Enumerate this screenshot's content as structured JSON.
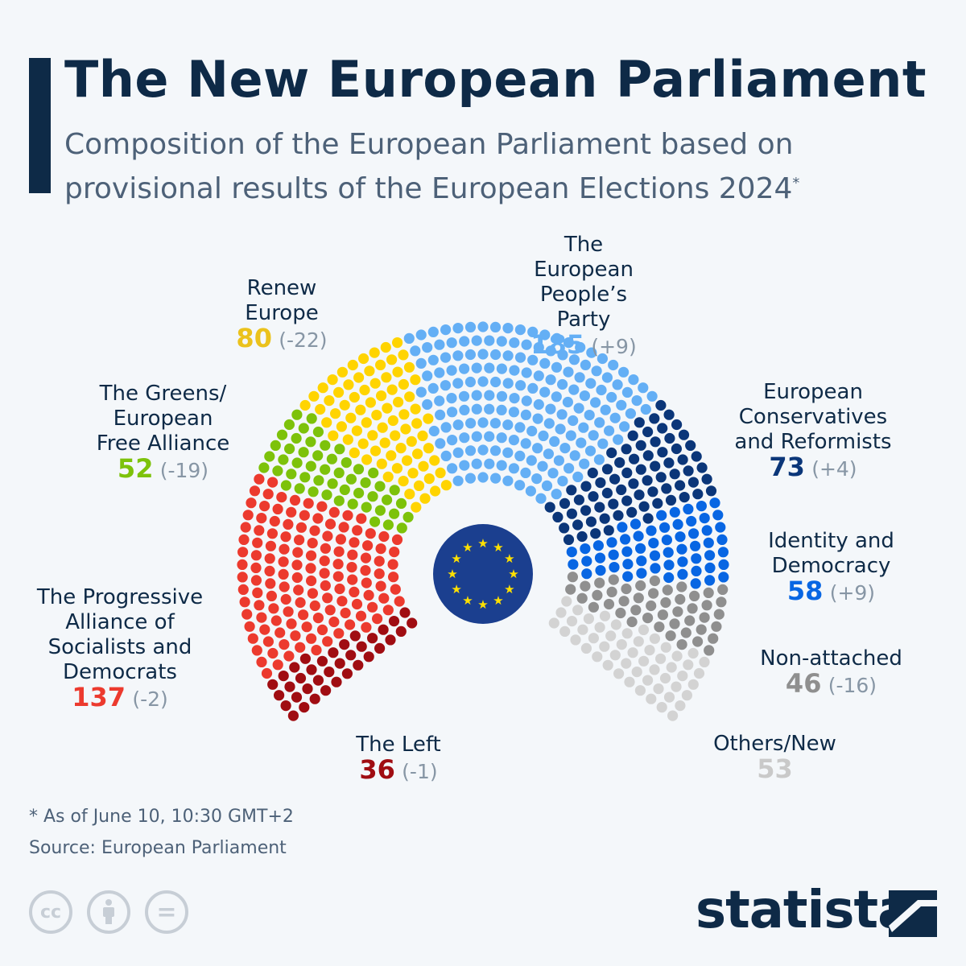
{
  "header": {
    "title": "The New European Parliament",
    "subtitle": "Composition of the European Parliament based on provisional results of the European Elections 2024",
    "subtitle_mark": "*"
  },
  "chart_data": {
    "type": "parliament",
    "total": 720,
    "parties": [
      {
        "name": "The Left",
        "seats": 36,
        "change": "(-1)",
        "color": "#a00d12"
      },
      {
        "name": "The Progressive Alliance of Socialists and Democrats",
        "seats": 137,
        "change": "(-2)",
        "color": "#ec3a2e"
      },
      {
        "name": "The Greens/ European Free Alliance",
        "seats": 52,
        "change": "(-19)",
        "color": "#7dc20a"
      },
      {
        "name": "Renew Europe",
        "seats": 80,
        "change": "(-22)",
        "color": "#ffd400"
      },
      {
        "name": "The European People's Party",
        "seats": 185,
        "change": "(+9)",
        "color": "#64aff5"
      },
      {
        "name": "European Conservatives and Reformists",
        "seats": 73,
        "change": "(+4)",
        "color": "#0b3679"
      },
      {
        "name": "Identity and Democracy",
        "seats": 58,
        "change": "(+9)",
        "color": "#0866e3"
      },
      {
        "name": "Non-attached",
        "seats": 46,
        "change": "(-16)",
        "color": "#8f8f8f"
      },
      {
        "name": "Others/New",
        "seats": 53,
        "change": "",
        "color": "#d3d3d3"
      }
    ],
    "label_colors": {
      "The Left": "#a00d12",
      "S&D": "#ec3a2e",
      "Greens": "#7dc20a",
      "Renew": "#ebc21c",
      "EPP": "#64aff5",
      "ECR": "#0b3679",
      "ID": "#0866e3",
      "NI": "#8f8f8f",
      "Others": "#c9c9c9"
    }
  },
  "labels": {
    "left": {
      "name": "The Left",
      "seats": "36",
      "change": "(-1)"
    },
    "sd": {
      "name": "The Progressive Alliance of Socialists and Democrats",
      "seats": "137",
      "change": "(-2)"
    },
    "greens": {
      "name": "The Greens/ European Free Alliance",
      "seats": "52",
      "change": "(-19)"
    },
    "renew": {
      "name": "Renew Europe",
      "seats": "80",
      "change": "(-22)"
    },
    "epp": {
      "name": "The European People’s Party",
      "seats": "185",
      "change": "(+9)"
    },
    "ecr": {
      "name": "European Conservatives and Reformists",
      "seats": "73",
      "change": "(+4)"
    },
    "id": {
      "name": "Identity and Democracy",
      "seats": "58",
      "change": "(+9)"
    },
    "ni": {
      "name": "Non-attached",
      "seats": "46",
      "change": "(-16)"
    },
    "others": {
      "name": "Others/New",
      "seats": "53"
    }
  },
  "footer": {
    "note": "* As of June 10, 10:30 GMT+2",
    "source": "Source: European Parliament",
    "brand": "statista",
    "cc_icons": [
      "cc-icon",
      "attribution-icon",
      "no-derivatives-icon"
    ],
    "cc_text": "cc",
    "nd_text": "="
  },
  "emblem": {
    "icon": "eu-flag-icon",
    "color": "#1b3f8f",
    "star_color": "#ffe000"
  }
}
